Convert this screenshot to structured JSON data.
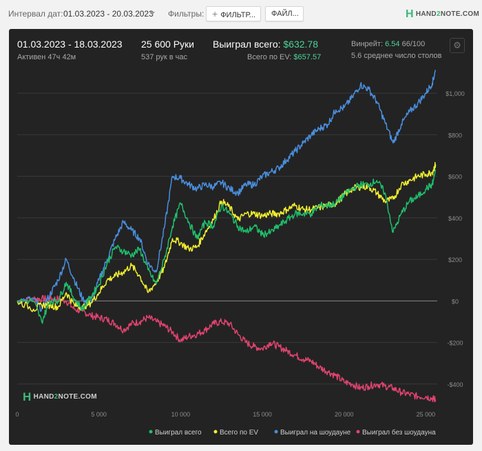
{
  "toolbar": {
    "date_interval_label": "Интервал дат:",
    "date_range": "01.03.2023 - 20.03.2023",
    "filters_label": "Фильтры:",
    "filter_button": "ФИЛЬТР...",
    "file_button": "ФАЙЛ...",
    "logo_prefix": "HAND",
    "logo_two": "2",
    "logo_suffix": "NOTE.COM"
  },
  "stats": {
    "period": "01.03.2023 - 18.03.2023",
    "active": "Активен 47ч 42м",
    "hands": "25 600 Руки",
    "hands_per_hour": "537 рук в час",
    "won_total_label": "Выиграл всего:",
    "won_total_value": "$632.78",
    "ev_label": "Всего по EV:",
    "ev_value": "$657.57",
    "winrate_label": "Винрейт:",
    "winrate_value": "6.54",
    "winrate_suffix": "66/100",
    "avg_tables": "5.6 среднее число столов"
  },
  "watermark": {
    "prefix": "HAND",
    "two": "2",
    "suffix": "NOTE.COM"
  },
  "colors": {
    "won_total": "#1fbf6b",
    "ev": "#f2f02f",
    "showdown": "#4a8fe0",
    "no_showdown": "#e0436f",
    "grid": "#3a3a3a",
    "zero": "#8a8a8a"
  },
  "chart_data": {
    "type": "line",
    "x_ticks": [
      0,
      5000,
      10000,
      15000,
      20000,
      25000
    ],
    "x_tick_labels": [
      "0",
      "5 000",
      "10 000",
      "15 000",
      "20 000",
      "25 000"
    ],
    "y_ticks": [
      -400,
      -200,
      0,
      200,
      400,
      600,
      800,
      1000
    ],
    "y_tick_labels": [
      "-$400",
      "-$200",
      "$0",
      "$200",
      "$400",
      "$600",
      "$800",
      "$1,000"
    ],
    "xlim": [
      0,
      25700
    ],
    "ylim": [
      -510,
      1110
    ],
    "grid": true,
    "legend_position": "bottom",
    "series": [
      {
        "name": "Выиграл всего",
        "color": "#1fbf6b",
        "x": [
          0,
          1000,
          1500,
          2000,
          2500,
          3000,
          3500,
          4000,
          4500,
          5000,
          5500,
          6000,
          6500,
          7000,
          7500,
          8000,
          8500,
          9000,
          9500,
          10000,
          10500,
          11000,
          11500,
          12000,
          12500,
          13000,
          13500,
          14000,
          14500,
          15000,
          15500,
          16000,
          16500,
          17000,
          17500,
          18000,
          18500,
          19000,
          19500,
          20000,
          20500,
          21000,
          21500,
          22000,
          22500,
          23000,
          23500,
          24000,
          24500,
          25000,
          25400,
          25600
        ],
        "y": [
          0,
          0,
          -100,
          0,
          0,
          90,
          10,
          -40,
          20,
          80,
          180,
          260,
          240,
          220,
          250,
          150,
          80,
          200,
          360,
          470,
          380,
          300,
          380,
          360,
          460,
          420,
          360,
          330,
          360,
          320,
          330,
          360,
          390,
          420,
          420,
          420,
          460,
          460,
          470,
          510,
          540,
          560,
          560,
          580,
          520,
          330,
          420,
          480,
          500,
          540,
          560,
          632
        ]
      },
      {
        "name": "Всего по EV",
        "color": "#f2f02f",
        "x": [
          0,
          1000,
          1500,
          2000,
          2500,
          3000,
          3500,
          4000,
          4500,
          5000,
          5500,
          6000,
          6500,
          7000,
          7500,
          8000,
          8500,
          9000,
          9500,
          10000,
          10500,
          11000,
          11500,
          12000,
          12500,
          13000,
          13500,
          14000,
          14500,
          15000,
          15500,
          16000,
          16500,
          17000,
          17500,
          18000,
          18500,
          19000,
          19500,
          20000,
          20500,
          21000,
          21500,
          22000,
          22500,
          23000,
          23500,
          24000,
          24500,
          25000,
          25400,
          25600
        ],
        "y": [
          0,
          -40,
          -20,
          -20,
          -30,
          40,
          -20,
          -30,
          -10,
          40,
          100,
          120,
          140,
          170,
          120,
          40,
          90,
          160,
          300,
          280,
          250,
          260,
          330,
          390,
          480,
          450,
          390,
          420,
          420,
          410,
          420,
          420,
          440,
          460,
          440,
          440,
          450,
          460,
          470,
          510,
          540,
          550,
          550,
          520,
          480,
          490,
          560,
          580,
          600,
          610,
          620,
          657
        ]
      },
      {
        "name": "Выиграл на шоудауне",
        "color": "#4a8fe0",
        "x": [
          0,
          1000,
          1500,
          2000,
          2500,
          3000,
          3500,
          4000,
          4500,
          5000,
          5500,
          6000,
          6500,
          7000,
          7500,
          8000,
          8500,
          9000,
          9500,
          10000,
          10500,
          11000,
          11500,
          12000,
          12500,
          13000,
          13500,
          14000,
          14500,
          15000,
          15500,
          16000,
          16500,
          17000,
          17500,
          18000,
          18500,
          19000,
          19500,
          20000,
          20500,
          21000,
          21500,
          22000,
          22500,
          23000,
          23500,
          24000,
          24500,
          25000,
          25400,
          25600
        ],
        "y": [
          0,
          10,
          -40,
          30,
          100,
          200,
          100,
          10,
          -10,
          100,
          200,
          300,
          380,
          340,
          300,
          180,
          140,
          350,
          600,
          590,
          560,
          540,
          560,
          550,
          570,
          540,
          520,
          560,
          560,
          600,
          620,
          640,
          680,
          720,
          760,
          800,
          830,
          850,
          920,
          930,
          980,
          1040,
          1020,
          960,
          860,
          760,
          850,
          910,
          950,
          1000,
          1050,
          1110
        ]
      },
      {
        "name": "Выиграл без шоудауна",
        "color": "#e0436f",
        "x": [
          0,
          1000,
          1500,
          2000,
          2500,
          3000,
          3500,
          4000,
          4500,
          5000,
          5500,
          6000,
          6500,
          7000,
          7500,
          8000,
          8500,
          9000,
          9500,
          10000,
          10500,
          11000,
          11500,
          12000,
          12500,
          13000,
          13500,
          14000,
          14500,
          15000,
          15500,
          16000,
          16500,
          17000,
          17500,
          18000,
          18500,
          19000,
          19500,
          20000,
          20500,
          21000,
          21500,
          22000,
          22500,
          23000,
          23500,
          24000,
          24500,
          25000,
          25400,
          25600
        ],
        "y": [
          0,
          10,
          10,
          10,
          10,
          0,
          -40,
          -50,
          -70,
          -80,
          -90,
          -110,
          -140,
          -110,
          -100,
          -80,
          -100,
          -120,
          -150,
          -190,
          -170,
          -160,
          -140,
          -110,
          -100,
          -110,
          -160,
          -200,
          -220,
          -230,
          -200,
          -220,
          -240,
          -260,
          -280,
          -290,
          -320,
          -340,
          -360,
          -390,
          -400,
          -420,
          -410,
          -400,
          -410,
          -420,
          -440,
          -450,
          -460,
          -460,
          -470,
          -475
        ]
      }
    ]
  }
}
